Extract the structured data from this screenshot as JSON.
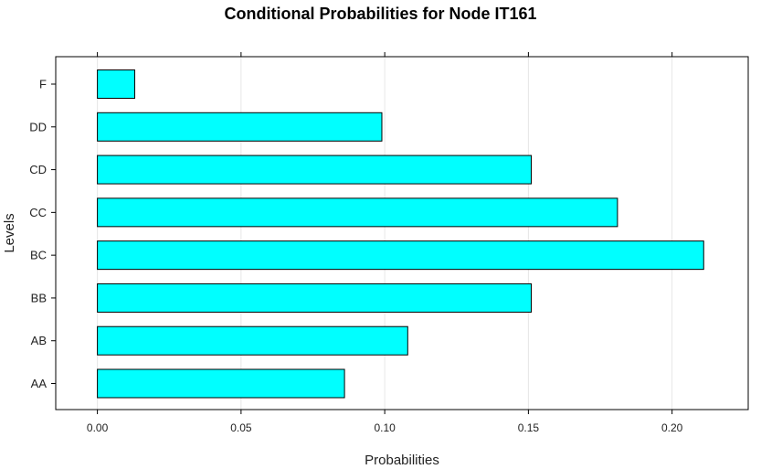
{
  "chart_data": {
    "type": "bar",
    "orientation": "horizontal",
    "title": "Conditional Probabilities for Node IT161",
    "xlabel": "Probabilities",
    "ylabel": "Levels",
    "categories": [
      "AA",
      "AB",
      "BB",
      "BC",
      "CC",
      "CD",
      "DD",
      "F"
    ],
    "values": [
      0.086,
      0.108,
      0.151,
      0.211,
      0.181,
      0.151,
      0.099,
      0.013
    ],
    "xlim": [
      -0.0145,
      0.2265
    ],
    "xticks": [
      0.0,
      0.05,
      0.1,
      0.15,
      0.2
    ],
    "xtick_labels": [
      "0.00",
      "0.05",
      "0.10",
      "0.15",
      "0.20"
    ],
    "grid": "vertical",
    "bar_color": "#00FFFF",
    "bar_edge_color": "#000000"
  }
}
